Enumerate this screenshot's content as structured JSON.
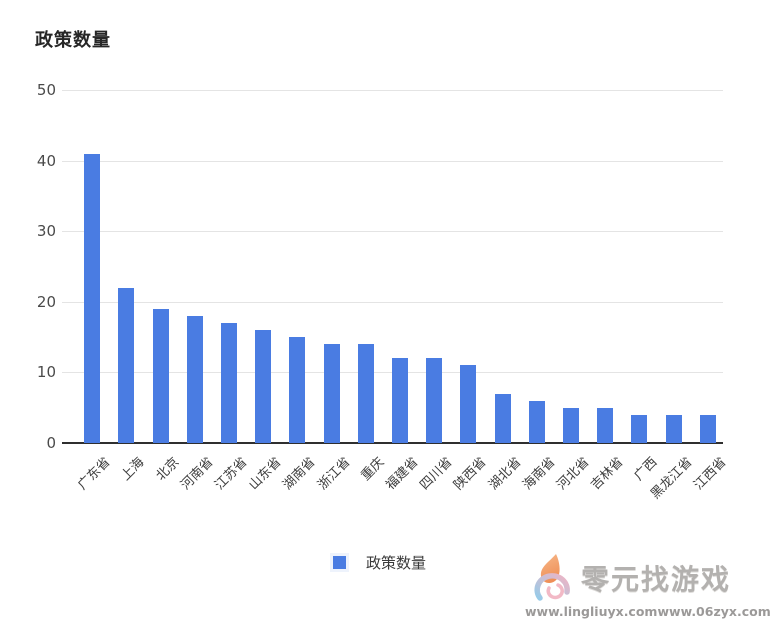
{
  "page": {
    "title": "政策数量"
  },
  "legend": {
    "items": [
      {
        "label": "政策数量",
        "color": "#4a7ce2"
      }
    ]
  },
  "chart_data": {
    "type": "bar",
    "title": "政策数量",
    "series_name": "政策数量",
    "categories": [
      "广东省",
      "上海",
      "北京",
      "河南省",
      "江苏省",
      "山东省",
      "湖南省",
      "浙江省",
      "重庆",
      "福建省",
      "四川省",
      "陕西省",
      "湖北省",
      "海南省",
      "河北省",
      "吉林省",
      "广西",
      "黑龙江省",
      "江西省"
    ],
    "values": [
      41,
      22,
      19,
      18,
      17,
      16,
      15,
      14,
      14,
      12,
      12,
      11,
      7,
      6,
      5,
      5,
      4,
      4,
      4
    ],
    "xlabel": "",
    "ylabel": "",
    "ylim": [
      0,
      50
    ],
    "yticks": [
      0,
      10,
      20,
      30,
      40,
      50
    ],
    "grid": true,
    "legend_position": "bottom",
    "bar_color": "#4a7ce2"
  },
  "colors": {
    "bar": "#4a7ce2",
    "grid_line": "#e4e4e4",
    "axis_line": "#2f2f2f",
    "title_text": "#262626",
    "tick_text": "#4a4a4a",
    "background": "#ffffff"
  },
  "watermark": {
    "brand": "零元找游戏",
    "urls": [
      "www.lingliuyx.com",
      "www.06zyx.com"
    ],
    "icon": "flame-spiral-logo",
    "icon_colors": {
      "flame_light": "#f7b98a",
      "flame_dark": "#ef8f57",
      "swirl_pink": "#f0b4c4",
      "swirl_blue": "#96cbe9"
    }
  }
}
